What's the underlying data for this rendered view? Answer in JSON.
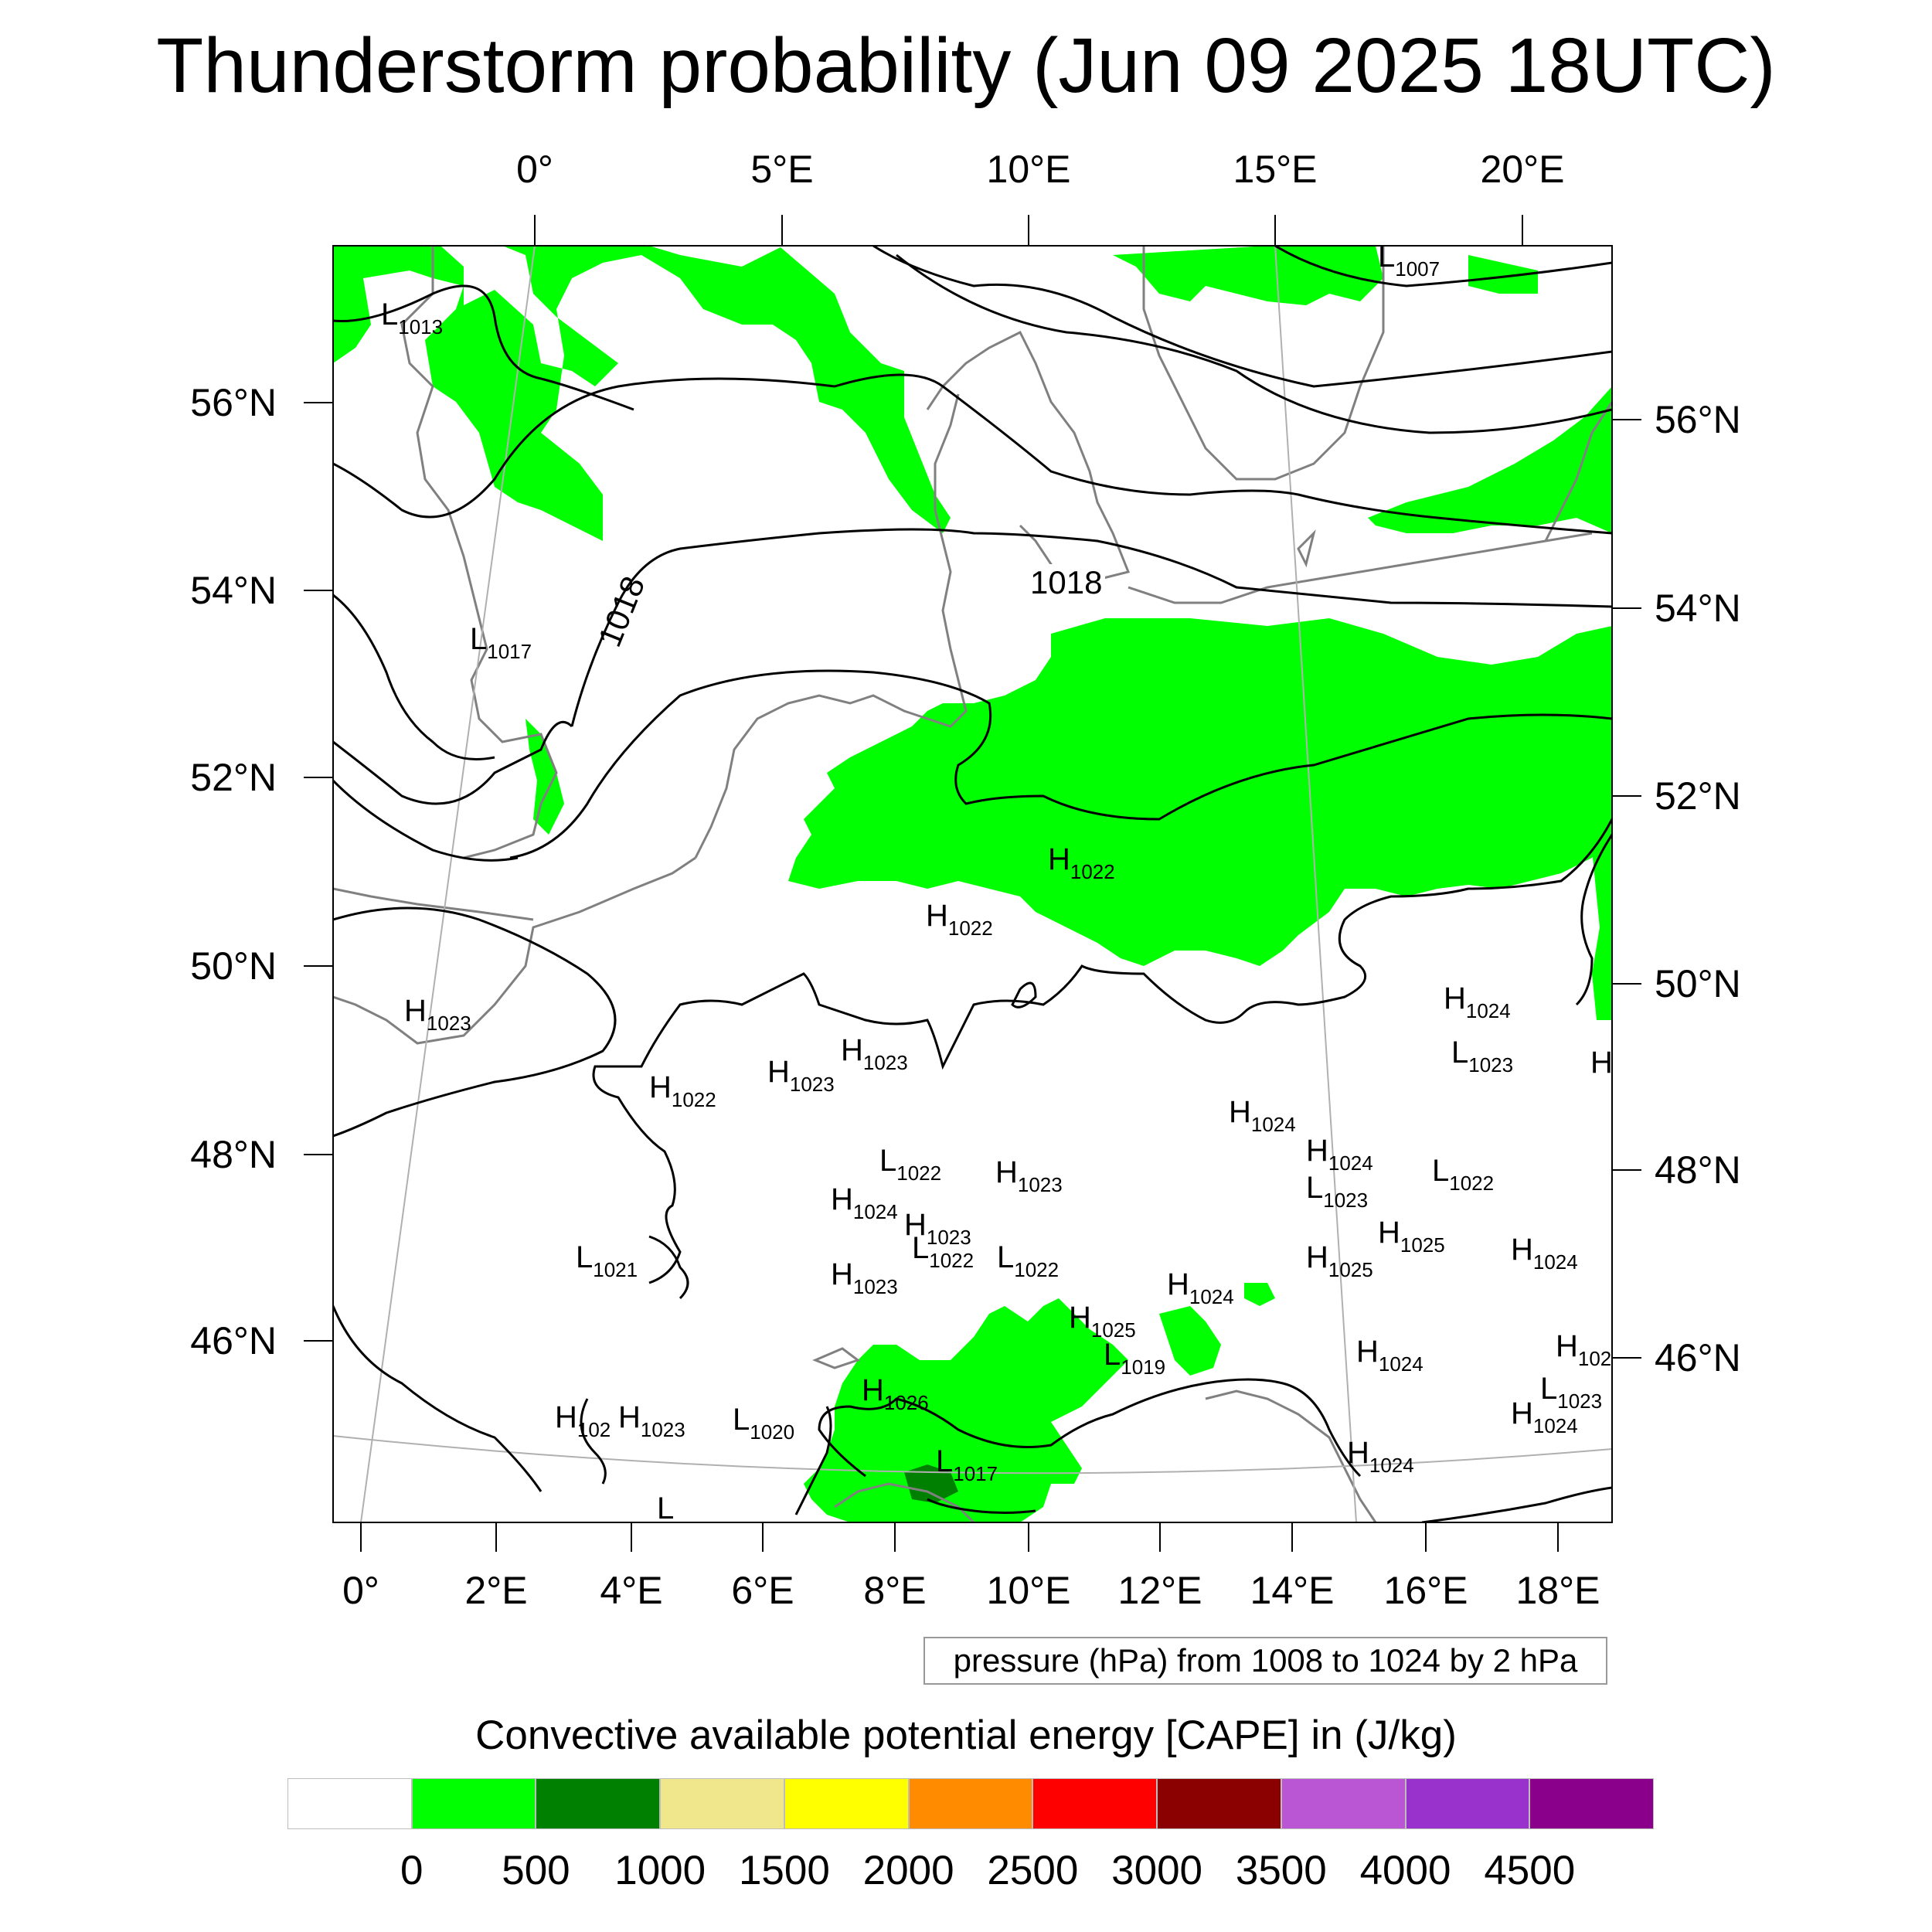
{
  "title": "Thunderstorm probability (Jun 09 2025 18UTC)",
  "colors": {
    "cape_low": "#00ff00",
    "cape_mid": "#008000",
    "coastline": "#808080",
    "isobar": "#000000"
  },
  "axes": {
    "top_lon_labels": [
      "0°",
      "5°E",
      "10°E",
      "15°E",
      "20°E"
    ],
    "bottom_lon_labels": [
      "0°",
      "2°E",
      "4°E",
      "6°E",
      "8°E",
      "10°E",
      "12°E",
      "14°E",
      "16°E",
      "18°E"
    ],
    "left_lat_labels": [
      "56°N",
      "54°N",
      "52°N",
      "50°N",
      "48°N",
      "46°N"
    ],
    "right_lat_labels": [
      "56°N",
      "54°N",
      "52°N",
      "50°N",
      "48°N",
      "46°N"
    ]
  },
  "contour_labels": [
    "1018",
    "1018"
  ],
  "pressure_centers": [
    {
      "t": "L",
      "v": "1007"
    },
    {
      "t": "L",
      "v": "1013"
    },
    {
      "t": "L",
      "v": "1017"
    },
    {
      "t": "H",
      "v": "1022"
    },
    {
      "t": "H",
      "v": "1022"
    },
    {
      "t": "H",
      "v": "1023"
    },
    {
      "t": "H",
      "v": "1022"
    },
    {
      "t": "H",
      "v": "1023"
    },
    {
      "t": "H",
      "v": "1023"
    },
    {
      "t": "H",
      "v": "1024"
    },
    {
      "t": "L",
      "v": "1023"
    },
    {
      "t": "H",
      "v": ""
    },
    {
      "t": "H",
      "v": "1024"
    },
    {
      "t": "H",
      "v": "1024"
    },
    {
      "t": "L",
      "v": "1022"
    },
    {
      "t": "L",
      "v": "1023"
    },
    {
      "t": "L",
      "v": "1022"
    },
    {
      "t": "H",
      "v": "1023"
    },
    {
      "t": "H",
      "v": "1024"
    },
    {
      "t": "H",
      "v": "1023"
    },
    {
      "t": "L",
      "v": "1022"
    },
    {
      "t": "L",
      "v": "1022"
    },
    {
      "t": "H",
      "v": "1025"
    },
    {
      "t": "H",
      "v": "1025"
    },
    {
      "t": "H",
      "v": "1024"
    },
    {
      "t": "L",
      "v": "1021"
    },
    {
      "t": "H",
      "v": "1023"
    },
    {
      "t": "H",
      "v": "1024"
    },
    {
      "t": "H",
      "v": "1025"
    },
    {
      "t": "L",
      "v": "1019"
    },
    {
      "t": "H",
      "v": "1024"
    },
    {
      "t": "H",
      "v": "102"
    },
    {
      "t": "L",
      "v": "1023"
    },
    {
      "t": "H",
      "v": "1024"
    },
    {
      "t": "H",
      "v": "102"
    },
    {
      "t": "H",
      "v": "1023"
    },
    {
      "t": "L",
      "v": "1020"
    },
    {
      "t": "H",
      "v": "1026"
    },
    {
      "t": "L",
      "v": "1017"
    },
    {
      "t": "H",
      "v": "1024"
    },
    {
      "t": "L",
      "v": ""
    }
  ],
  "info_box": "pressure (hPa) from 1008 to 1024 by 2 hPa",
  "colorbar": {
    "title": "Convective available potential energy [CAPE] in (J/kg)",
    "colors": [
      "#ffffff",
      "#00ff00",
      "#008000",
      "#f0e68c",
      "#ffff00",
      "#ff8c00",
      "#ff0000",
      "#8b0000",
      "#ba55d3",
      "#9932cc",
      "#8b008b"
    ],
    "labels": [
      "0",
      "500",
      "1000",
      "1500",
      "2000",
      "2500",
      "3000",
      "3500",
      "4000",
      "4500"
    ]
  }
}
